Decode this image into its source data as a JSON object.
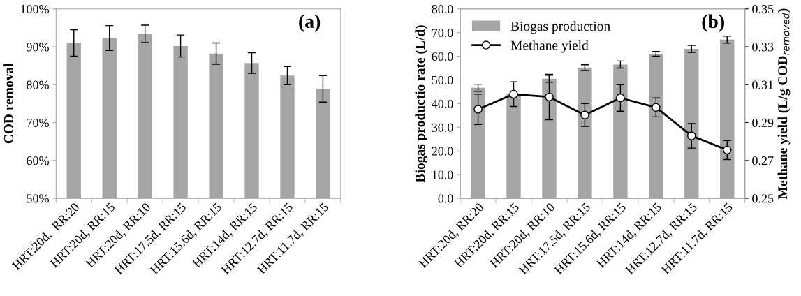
{
  "chart_data": [
    {
      "type": "bar",
      "ylabel": "COD removal",
      "annotations": [
        "(a)"
      ],
      "categories": [
        "HRT:20d,  RR:20",
        "HRT:20d, RR:15",
        "HRT:20d, RR:10",
        "HRT:17.5d, RR:15",
        "HRT:15.6d, RR:15",
        "HRT:14d, RR:15",
        "HRT:12.7d, RR:15",
        "HRT:11.7d, RR:15"
      ],
      "series": [
        {
          "color": "#a5a5a5",
          "values": [
            91.0,
            92.3,
            93.4,
            90.2,
            88.2,
            85.7,
            82.4,
            78.9
          ],
          "errors": [
            3.5,
            3.3,
            2.3,
            2.9,
            2.8,
            2.7,
            2.4,
            3.5
          ]
        }
      ],
      "ylim": [
        50,
        100
      ],
      "yticks": [
        {
          "value": 50,
          "label": "50%"
        },
        {
          "value": 60,
          "label": "60%"
        },
        {
          "value": 70,
          "label": "70%"
        },
        {
          "value": 80,
          "label": "80%"
        },
        {
          "value": 90,
          "label": "90%"
        },
        {
          "value": 100,
          "label": "100%"
        }
      ],
      "grid": false
    },
    {
      "type": "bar",
      "ylabel": "Biogas productio rate (L/d)",
      "y2label": "Methane yield (L/g COD$_{removed}$)",
      "annotations": [
        "(b)"
      ],
      "legend": "top left",
      "categories": [
        "HRT:20d, RR:20",
        "HRT:20d, RR:15",
        "HRT:20d, RR:10",
        "HRT:17.5d, RR:15",
        "HRT:15.6d, RR:15",
        "HRT:14d, RR:15",
        "HRT:12.7d, RR:15",
        "HRT:11.7d, RR:15"
      ],
      "series": [
        {
          "name": "Biogas production",
          "type": "bar",
          "color": "#a5a5a5",
          "values": [
            46.7,
            44.0,
            50.5,
            55.2,
            56.5,
            61.0,
            63.1,
            67.0
          ],
          "errors": [
            1.5,
            null,
            1.5,
            1.2,
            1.5,
            1.0,
            1.5,
            1.5
          ]
        },
        {
          "name": "Methane yield",
          "type": "line",
          "axis": "y2",
          "color": "#000000",
          "marker": "circle",
          "values": [
            0.297,
            0.305,
            0.3035,
            0.294,
            0.303,
            0.298,
            0.283,
            0.2755
          ],
          "errors": [
            0.008,
            0.0065,
            0.012,
            0.006,
            0.007,
            0.005,
            0.0065,
            0.005
          ]
        }
      ],
      "ylim": [
        0,
        80
      ],
      "yticks": [
        {
          "value": 0,
          "label": "0.0"
        },
        {
          "value": 10,
          "label": "10.0"
        },
        {
          "value": 20,
          "label": "20.0"
        },
        {
          "value": 30,
          "label": "30.0"
        },
        {
          "value": 40,
          "label": "40.0"
        },
        {
          "value": 50,
          "label": "50.0"
        },
        {
          "value": 60,
          "label": "60.0"
        },
        {
          "value": 70,
          "label": "70.0"
        },
        {
          "value": 80,
          "label": "80.0"
        }
      ],
      "y2lim": [
        0.25,
        0.35
      ],
      "y2ticks": [
        0.25,
        0.27,
        0.29,
        0.31,
        0.33,
        0.35
      ],
      "grid": false
    }
  ]
}
